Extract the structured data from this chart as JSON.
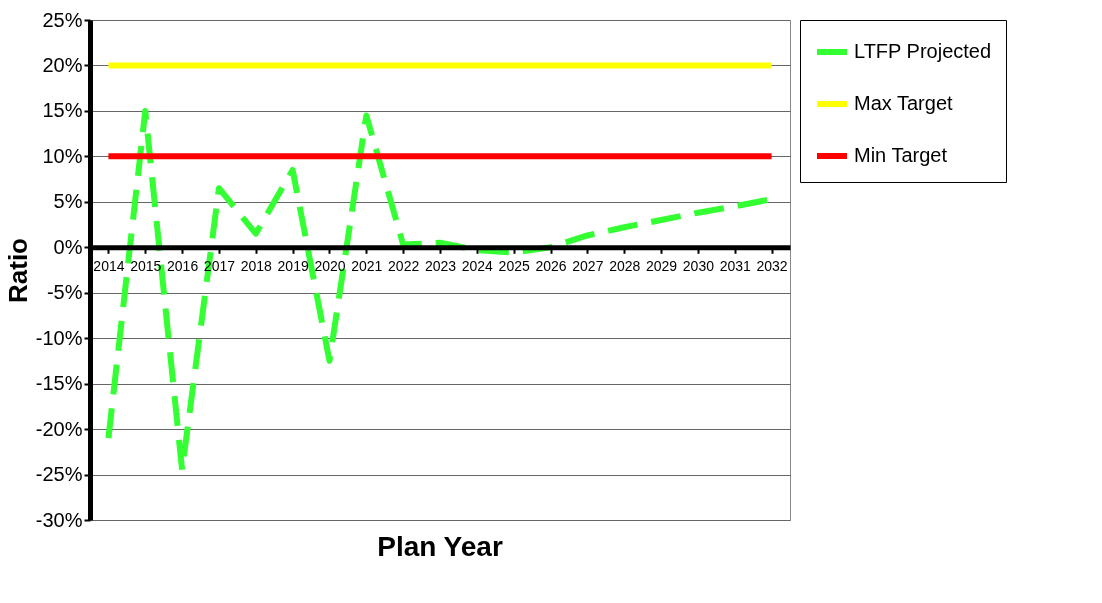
{
  "chart_data": {
    "type": "line",
    "xlabel": "Plan Year",
    "ylabel": "Ratio",
    "categories": [
      "2014",
      "2015",
      "2016",
      "2017",
      "2018",
      "2019",
      "2020",
      "2021",
      "2022",
      "2023",
      "2024",
      "2025",
      "2026",
      "2027",
      "2028",
      "2029",
      "2030",
      "2031",
      "2032"
    ],
    "series": [
      {
        "name": "LTFP Projected",
        "color": "#33ff33",
        "line_style": "dashed",
        "values": [
          -21,
          15,
          -24.5,
          6.5,
          1.5,
          8.5,
          -12.5,
          14.5,
          0.3,
          0.5,
          -0.3,
          -0.6,
          0,
          1.3,
          2.2,
          3,
          3.8,
          4.5,
          5.3
        ]
      },
      {
        "name": "Max Target",
        "color": "#ffff00",
        "line_style": "solid",
        "values": [
          20,
          20,
          20,
          20,
          20,
          20,
          20,
          20,
          20,
          20,
          20,
          20,
          20,
          20,
          20,
          20,
          20,
          20,
          20
        ]
      },
      {
        "name": "Min Target",
        "color": "#ff0000",
        "line_style": "solid",
        "values": [
          10,
          10,
          10,
          10,
          10,
          10,
          10,
          10,
          10,
          10,
          10,
          10,
          10,
          10,
          10,
          10,
          10,
          10,
          10
        ]
      }
    ],
    "ylim": [
      -30,
      25
    ],
    "yticks": [
      {
        "value": -30,
        "label": "-30%"
      },
      {
        "value": -25,
        "label": "-25%"
      },
      {
        "value": -20,
        "label": "-20%"
      },
      {
        "value": -15,
        "label": "-15%"
      },
      {
        "value": -10,
        "label": "-10%"
      },
      {
        "value": -5,
        "label": "-5%"
      },
      {
        "value": 0,
        "label": "0%"
      },
      {
        "value": 5,
        "label": "5%"
      },
      {
        "value": 10,
        "label": "10%"
      },
      {
        "value": 15,
        "label": "15%"
      },
      {
        "value": 20,
        "label": "20%"
      },
      {
        "value": 25,
        "label": "25%"
      }
    ],
    "grid": "y",
    "legend": "right",
    "marker": "none"
  }
}
